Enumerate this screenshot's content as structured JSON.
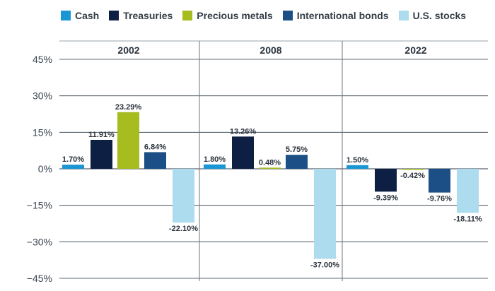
{
  "colors": {
    "cash": "#1a96d4",
    "treasuries": "#0e1f44",
    "precious_metals": "#a6bc1f",
    "international_bonds": "#1b4f85",
    "us_stocks": "#addcee"
  },
  "chart_data": {
    "type": "bar",
    "series": [
      {
        "name": "Cash",
        "color": "#1a96d4"
      },
      {
        "name": "Treasuries",
        "color": "#0e1f44"
      },
      {
        "name": "Precious metals",
        "color": "#a6bc1f"
      },
      {
        "name": "International bonds",
        "color": "#1b4f85"
      },
      {
        "name": "U.S. stocks",
        "color": "#addcee"
      }
    ],
    "panels": [
      {
        "title": "2002",
        "values": [
          1.7,
          11.91,
          23.29,
          6.84,
          -22.1
        ],
        "labels": [
          "1.70%",
          "11.91%",
          "23.29%",
          "6.84%",
          "-22.10%"
        ]
      },
      {
        "title": "2008",
        "values": [
          1.8,
          13.26,
          0.48,
          5.75,
          -37.0
        ],
        "labels": [
          "1.80%",
          "13.26%",
          "0.48%",
          "5.75%",
          "-37.00%"
        ]
      },
      {
        "title": "2022",
        "values": [
          1.5,
          -9.39,
          -0.42,
          -9.76,
          -18.11
        ],
        "labels": [
          "1.50%",
          "-9.39%",
          "-0.42%",
          "-9.76%",
          "-18.11%"
        ]
      }
    ],
    "y_ticks": [
      45,
      30,
      15,
      0,
      -15,
      -30,
      -45
    ],
    "y_tick_labels": [
      "45%",
      "30%",
      "15%",
      "0%",
      "−15%",
      "−30%",
      "−45%"
    ],
    "ylim": [
      -45,
      45
    ],
    "grid": true,
    "legend_position": "top"
  }
}
